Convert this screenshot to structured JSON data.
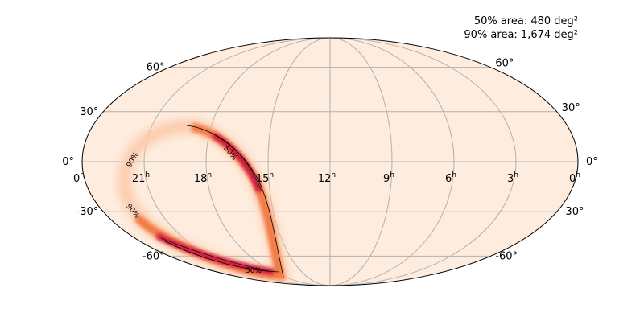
{
  "annotations": {
    "area_50": "50% area: 480 deg²",
    "area_90": "90% area: 1,674 deg²"
  },
  "map": {
    "dec_labels": [
      {
        "dec": 60,
        "label": "60°"
      },
      {
        "dec": 30,
        "label": "30°"
      },
      {
        "dec": 0,
        "label": "0°"
      },
      {
        "dec": -30,
        "label": "-30°"
      },
      {
        "dec": -60,
        "label": "-60°"
      }
    ],
    "ra_labels": [
      {
        "text": "0",
        "sup": "h"
      },
      {
        "text": "21",
        "sup": "h"
      },
      {
        "text": "18",
        "sup": "h"
      },
      {
        "text": "15",
        "sup": "h"
      },
      {
        "text": "12",
        "sup": "h"
      },
      {
        "text": "9",
        "sup": "h"
      },
      {
        "text": "6",
        "sup": "h"
      },
      {
        "text": "3",
        "sup": "h"
      },
      {
        "text": "0",
        "sup": "h"
      }
    ],
    "contour_labels": [
      "90%",
      "90%",
      "50%",
      "50%"
    ]
  }
}
